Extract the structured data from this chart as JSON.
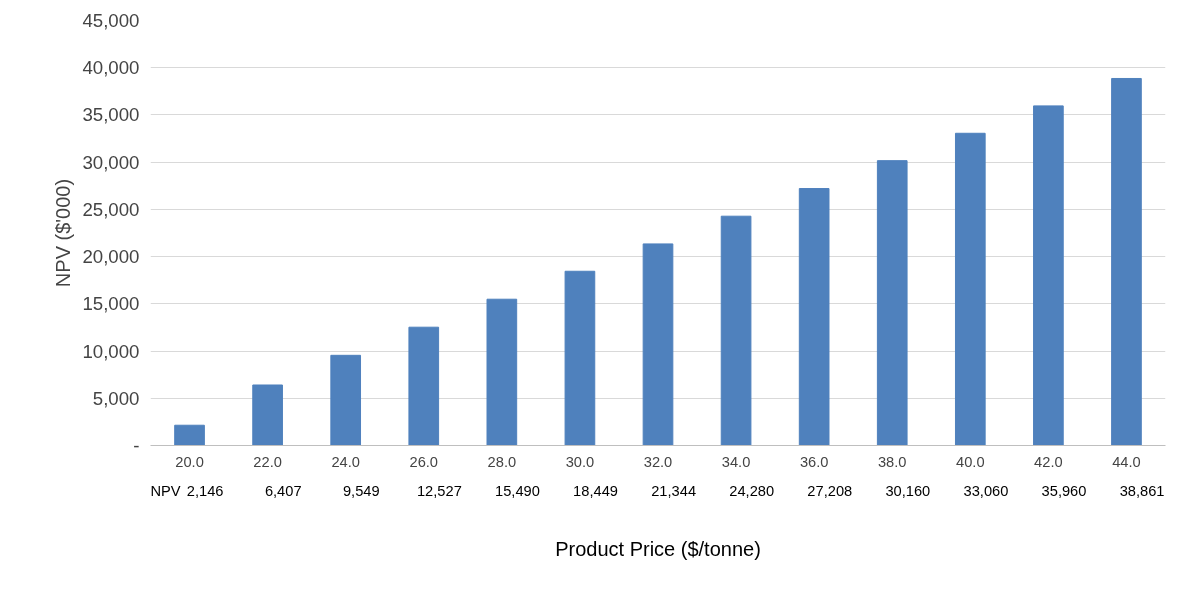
{
  "chart_data": {
    "type": "bar",
    "xlabel": "Product Price ($/tonne)",
    "ylabel": "NPV ($'000)",
    "categories": [
      "20.0",
      "22.0",
      "24.0",
      "26.0",
      "28.0",
      "30.0",
      "32.0",
      "34.0",
      "36.0",
      "38.0",
      "40.0",
      "42.0",
      "44.0"
    ],
    "series": [
      {
        "name": "NPV",
        "color": "#4f81bd",
        "values": [
          2146,
          6407,
          9549,
          12527,
          15490,
          18449,
          21344,
          24280,
          27208,
          30160,
          33060,
          35960,
          38861
        ],
        "value_labels": [
          "2,146",
          "6,407",
          "9,549",
          "12,527",
          "15,490",
          "18,449",
          "21,344",
          "24,280",
          "27,208",
          "30,160",
          "33,060",
          "35,960",
          "38,861"
        ]
      }
    ],
    "ylim": [
      0,
      45000
    ],
    "yticks": [
      {
        "value": 0,
        "label": "-"
      },
      {
        "value": 5000,
        "label": "5,000"
      },
      {
        "value": 10000,
        "label": "10,000"
      },
      {
        "value": 15000,
        "label": "15,000"
      },
      {
        "value": 20000,
        "label": "20,000"
      },
      {
        "value": 25000,
        "label": "25,000"
      },
      {
        "value": 30000,
        "label": "30,000"
      },
      {
        "value": 35000,
        "label": "35,000"
      },
      {
        "value": 40000,
        "label": "40,000"
      },
      {
        "value": 45000,
        "label": "45,000"
      }
    ],
    "grid": "y"
  }
}
